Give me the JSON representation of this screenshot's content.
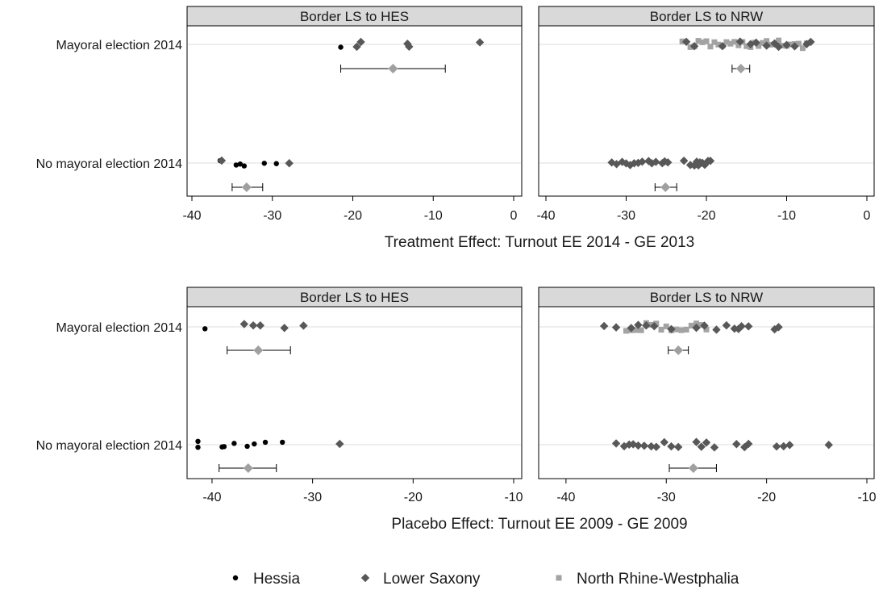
{
  "chart_data": [
    {
      "type": "scatter",
      "xlabel": "Treatment Effect: Turnout EE 2014 - GE 2013",
      "xlim": [
        -40,
        0
      ],
      "xticks": [
        -40,
        -30,
        -20,
        -10,
        0
      ],
      "rows": [
        "Mayoral election 2014",
        "No mayoral election 2014"
      ],
      "colors": {
        "Hessia": "#000000",
        "Lower Saxony": "#585858",
        "North Rhine-Westphalia": "#a3a3a3",
        "mean": "#a0a0a0"
      },
      "panels": [
        {
          "strip": "Border LS to HES",
          "groups": [
            {
              "row": "Mayoral election 2014",
              "Hessia": [
                -21.5
              ],
              "Lower Saxony": [
                -19.5,
                -19.0,
                -13.2,
                -13.0,
                -4.2
              ],
              "North Rhine-Westphalia": [],
              "mean": -15.0,
              "ci": [
                -21.5,
                -8.5
              ]
            },
            {
              "row": "No mayoral election 2014",
              "Hessia": [
                -36.5,
                -34.5,
                -34.0,
                -33.5,
                -31.0,
                -29.5
              ],
              "Lower Saxony": [
                -36.3,
                -27.9
              ],
              "North Rhine-Westphalia": [],
              "mean": -33.2,
              "ci": [
                -35.0,
                -31.2
              ]
            }
          ]
        },
        {
          "strip": "Border LS to NRW",
          "groups": [
            {
              "row": "Mayoral election 2014",
              "Hessia": [],
              "Lower Saxony": [
                -22.5,
                -21.5,
                -18.0,
                -15.8,
                -14.5,
                -13.8,
                -12.5,
                -11.5,
                -11.0,
                -10.0,
                -9.0,
                -7.5,
                -7.0
              ],
              "North Rhine-Westphalia": [
                -23.0,
                -22.0,
                -21.5,
                -21.0,
                -20.5,
                -20.0,
                -19.5,
                -19.0,
                -18.5,
                -18.0,
                -17.5,
                -17.0,
                -16.5,
                -16.0,
                -15.5,
                -15.0,
                -14.5,
                -14.0,
                -13.5,
                -13.0,
                -12.5,
                -12.0,
                -11.5,
                -11.0,
                -10.5,
                -10.0,
                -9.5,
                -9.0,
                -8.5,
                -8.0,
                -7.5
              ],
              "mean": -15.7,
              "ci": [
                -16.8,
                -14.6
              ]
            },
            {
              "row": "No mayoral election 2014",
              "Hessia": [],
              "Lower Saxony": [
                -31.8,
                -31.2,
                -30.5,
                -30.0,
                -29.5,
                -29.0,
                -28.5,
                -28.0,
                -27.2,
                -26.8,
                -26.3,
                -25.5,
                -25.2,
                -24.8,
                -22.8,
                -22.0,
                -21.5,
                -21.2,
                -21.0,
                -20.8,
                -20.5,
                -20.2,
                -19.8,
                -19.5
              ],
              "North Rhine-Westphalia": [],
              "mean": -25.1,
              "ci": [
                -26.4,
                -23.7
              ]
            }
          ]
        }
      ]
    },
    {
      "type": "scatter",
      "xlabel": "Placebo Effect: Turnout EE 2009 - GE 2009",
      "xlim": [
        -42,
        -10
      ],
      "xticks": [
        -40,
        -30,
        -20,
        -10
      ],
      "rows": [
        "Mayoral election 2014",
        "No mayoral election 2014"
      ],
      "colors": {
        "Hessia": "#000000",
        "Lower Saxony": "#585858",
        "North Rhine-Westphalia": "#a3a3a3",
        "mean": "#a0a0a0"
      },
      "panels": [
        {
          "strip": "Border LS to HES",
          "groups": [
            {
              "row": "Mayoral election 2014",
              "Hessia": [
                -40.7
              ],
              "Lower Saxony": [
                -36.8,
                -35.9,
                -35.2,
                -32.8,
                -30.9
              ],
              "North Rhine-Westphalia": [],
              "mean": -35.4,
              "ci": [
                -38.5,
                -32.2
              ]
            },
            {
              "row": "No mayoral election 2014",
              "Hessia": [
                -41.4,
                -41.4,
                -39.0,
                -38.8,
                -37.8,
                -36.5,
                -35.8,
                -34.7,
                -33.0
              ],
              "Lower Saxony": [
                -27.3
              ],
              "North Rhine-Westphalia": [],
              "mean": -36.4,
              "ci": [
                -39.3,
                -33.6
              ]
            }
          ]
        },
        {
          "strip": "Border LS to NRW",
          "groups": [
            {
              "row": "Mayoral election 2014",
              "Hessia": [],
              "Lower Saxony": [
                -36.2,
                -35.0,
                -33.5,
                -32.8,
                -32.0,
                -31.2,
                -29.5,
                -27.0,
                -26.2,
                -25.0,
                -24.0,
                -23.2,
                -22.8,
                -22.5,
                -21.8,
                -19.2,
                -18.8
              ],
              "North Rhine-Westphalia": [
                -34.0,
                -33.5,
                -33.0,
                -32.5,
                -32.0,
                -31.5,
                -31.0,
                -30.5,
                -30.0,
                -29.5,
                -29.0,
                -28.5,
                -28.0,
                -27.5,
                -27.0,
                -26.5,
                -26.0
              ],
              "mean": -28.8,
              "ci": [
                -29.8,
                -27.8
              ]
            },
            {
              "row": "No mayoral election 2014",
              "Hessia": [],
              "Lower Saxony": [
                -35.0,
                -34.2,
                -33.7,
                -33.3,
                -32.8,
                -32.2,
                -31.5,
                -31.0,
                -30.2,
                -29.5,
                -28.8,
                -27.0,
                -26.5,
                -26.0,
                -25.2,
                -23.0,
                -22.2,
                -21.8,
                -19.0,
                -18.3,
                -17.7,
                -13.8
              ],
              "North Rhine-Westphalia": [],
              "mean": -27.3,
              "ci": [
                -29.7,
                -25.0
              ]
            }
          ]
        }
      ]
    }
  ],
  "legend": {
    "position": "bottom",
    "items": [
      {
        "label": "Hessia",
        "marker": "circle"
      },
      {
        "label": "Lower Saxony",
        "marker": "diamond"
      },
      {
        "label": "North Rhine-Westphalia",
        "marker": "square"
      }
    ]
  }
}
